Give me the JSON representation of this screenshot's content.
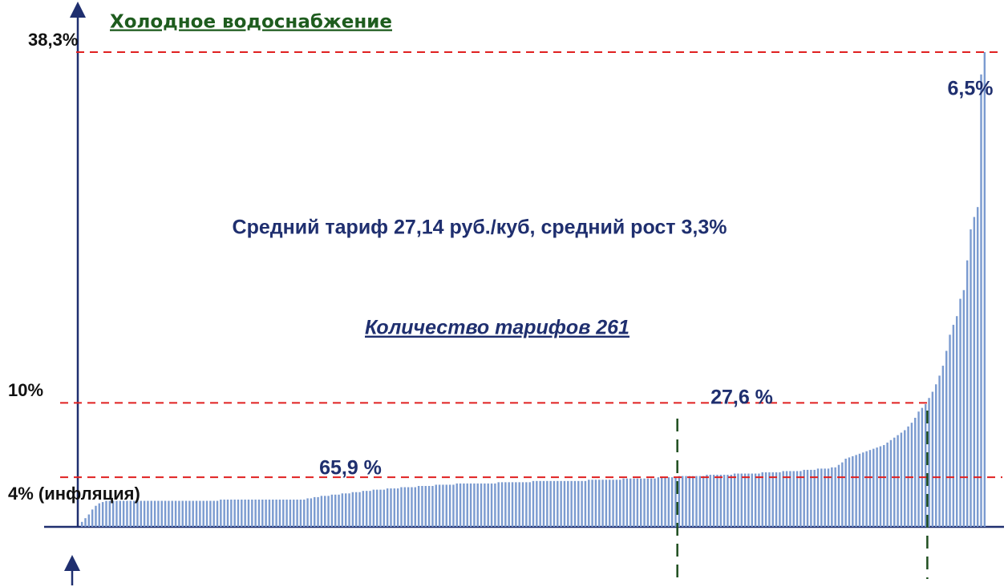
{
  "chart_data": {
    "type": "bar",
    "title": "Холодное водоснабжение",
    "subtitle": "Средний тариф 27,14 руб./куб, средний рост 3,3%",
    "note": "Количество тарифов 261",
    "annotations": [
      "65,9 %",
      "27,6 %",
      "6,5%"
    ],
    "color": "#7b9bd0",
    "ylim": [
      0,
      38.3
    ],
    "yticks": [
      {
        "value": 38.3,
        "label": "38,3%"
      },
      {
        "value": 10,
        "label": "10%"
      },
      {
        "value": 4,
        "label": "4% (инфляция)"
      }
    ],
    "grid": true,
    "grid_color": "#e02020",
    "values": [
      0.4,
      0.7,
      1.0,
      1.4,
      1.7,
      1.9,
      2.0,
      2.1,
      2.1,
      2.1,
      2.1,
      2.1,
      2.1,
      2.1,
      2.1,
      2.1,
      2.1,
      2.1,
      2.1,
      2.1,
      2.1,
      2.1,
      2.1,
      2.1,
      2.1,
      2.1,
      2.1,
      2.1,
      2.1,
      2.1,
      2.1,
      2.1,
      2.1,
      2.1,
      2.1,
      2.1,
      2.1,
      2.1,
      2.1,
      2.1,
      2.2,
      2.2,
      2.2,
      2.2,
      2.2,
      2.2,
      2.2,
      2.2,
      2.2,
      2.2,
      2.2,
      2.2,
      2.2,
      2.2,
      2.2,
      2.2,
      2.2,
      2.2,
      2.2,
      2.2,
      2.2,
      2.2,
      2.2,
      2.2,
      2.2,
      2.3,
      2.3,
      2.4,
      2.4,
      2.5,
      2.5,
      2.5,
      2.6,
      2.6,
      2.6,
      2.7,
      2.7,
      2.7,
      2.8,
      2.8,
      2.8,
      2.9,
      2.9,
      2.9,
      3.0,
      3.0,
      3.0,
      3.0,
      3.1,
      3.1,
      3.1,
      3.1,
      3.2,
      3.2,
      3.2,
      3.2,
      3.2,
      3.3,
      3.3,
      3.3,
      3.3,
      3.3,
      3.4,
      3.4,
      3.4,
      3.4,
      3.4,
      3.4,
      3.5,
      3.5,
      3.5,
      3.5,
      3.5,
      3.5,
      3.5,
      3.5,
      3.5,
      3.5,
      3.5,
      3.5,
      3.6,
      3.6,
      3.6,
      3.6,
      3.6,
      3.6,
      3.6,
      3.6,
      3.6,
      3.6,
      3.7,
      3.7,
      3.7,
      3.7,
      3.7,
      3.7,
      3.7,
      3.7,
      3.7,
      3.7,
      3.7,
      3.7,
      3.7,
      3.7,
      3.7,
      3.7,
      3.8,
      3.8,
      3.8,
      3.8,
      3.8,
      3.8,
      3.8,
      3.8,
      3.8,
      3.8,
      3.9,
      3.9,
      3.9,
      3.9,
      3.9,
      3.9,
      3.9,
      3.9,
      3.9,
      3.9,
      4.0,
      4.0,
      4.0,
      4.0,
      4.0,
      4.0,
      4.1,
      4.1,
      4.1,
      4.1,
      4.1,
      4.1,
      4.1,
      4.1,
      4.2,
      4.2,
      4.2,
      4.2,
      4.2,
      4.2,
      4.2,
      4.2,
      4.3,
      4.3,
      4.3,
      4.3,
      4.3,
      4.3,
      4.3,
      4.3,
      4.4,
      4.4,
      4.4,
      4.4,
      4.4,
      4.4,
      4.5,
      4.5,
      4.5,
      4.5,
      4.5,
      4.5,
      4.6,
      4.6,
      4.6,
      4.6,
      4.7,
      4.7,
      4.7,
      4.7,
      4.8,
      4.8,
      5.0,
      5.2,
      5.5,
      5.6,
      5.7,
      5.8,
      5.9,
      6.0,
      6.1,
      6.2,
      6.3,
      6.4,
      6.5,
      6.6,
      6.8,
      7.0,
      7.2,
      7.4,
      7.6,
      7.8,
      8.1,
      8.4,
      8.8,
      9.3,
      9.6,
      9.9,
      10.4,
      10.9,
      11.5,
      12.2,
      13.0,
      14.2,
      15.5,
      16.3,
      17.0,
      18.4,
      19.1,
      21.5,
      24.0,
      25.0,
      25.8,
      36.5,
      38.3
    ]
  }
}
